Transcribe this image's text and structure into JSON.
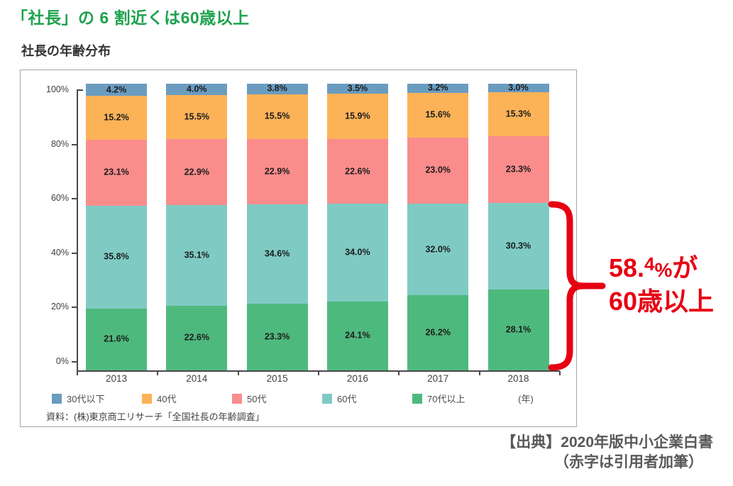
{
  "headline": "「社長」の 6 割近くは60歳以上",
  "chart": {
    "title": "社長の年齢分布",
    "source": "資料：(株)東京商工リサーチ「全国社長の年齢調査」",
    "xaxis_unit": "(年)"
  },
  "chart_data": {
    "type": "bar",
    "stacked": true,
    "title": "社長の年齢分布",
    "categories": [
      "2013",
      "2014",
      "2015",
      "2016",
      "2017",
      "2018"
    ],
    "series": [
      {
        "name": "70代以上",
        "color": "#4eb97d",
        "values": [
          21.6,
          22.6,
          23.3,
          24.1,
          26.2,
          28.1
        ]
      },
      {
        "name": "60代",
        "color": "#7fcbc4",
        "values": [
          35.8,
          35.1,
          34.6,
          34.0,
          32.0,
          30.3
        ]
      },
      {
        "name": "50代",
        "color": "#fa8c8c",
        "values": [
          23.1,
          22.9,
          22.9,
          22.6,
          23.0,
          23.3
        ]
      },
      {
        "name": "40代",
        "color": "#fcb257",
        "values": [
          15.2,
          15.5,
          15.5,
          15.9,
          15.6,
          15.3
        ]
      },
      {
        "name": "30代以下",
        "color": "#6a9cc0",
        "values": [
          4.2,
          4.0,
          3.8,
          3.5,
          3.2,
          3.0
        ]
      }
    ],
    "stack_order_note": "bottom-to-top: 70代以上, 60代, 50代, 40代, 30代以下",
    "legend": [
      "30代以下",
      "40代",
      "50代",
      "60代",
      "70代以上"
    ],
    "legend_position": "bottom",
    "yticks": [
      "0%",
      "20%",
      "40%",
      "60%",
      "80%",
      "100%"
    ],
    "ylim": [
      0,
      100
    ],
    "xlabel": "",
    "ylabel": "",
    "grid": false,
    "value_label_format": "percent-one-decimal"
  },
  "annotation": {
    "value_main": "58.",
    "value_sup": "4",
    "value_unit": "%",
    "value_suffix": "が",
    "line2": "60歳以上",
    "color": "#e60012"
  },
  "citation": {
    "line1": "【出典】2020年版中小企業白書",
    "line2": "（赤字は引用者加筆）"
  },
  "colors": {
    "headline_green": "#1ea24d",
    "annotation_red": "#e60012",
    "citation_gray": "#595959",
    "axis": "#4a4a4a",
    "box_border": "#a6a6a6"
  }
}
